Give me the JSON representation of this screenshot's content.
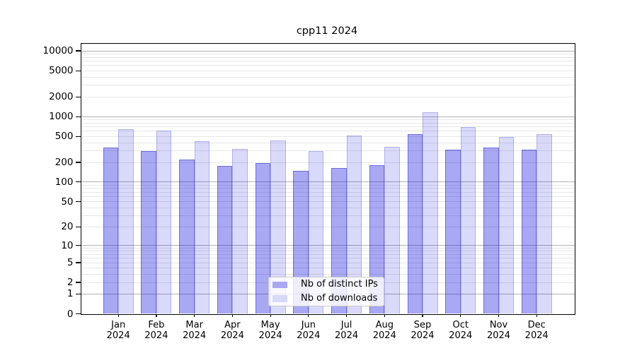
{
  "chart_data": {
    "type": "bar",
    "title": "cpp11 2024",
    "year_label": "2024",
    "months": [
      "Jan",
      "Feb",
      "Mar",
      "Apr",
      "May",
      "Jun",
      "Jul",
      "Aug",
      "Sep",
      "Oct",
      "Nov",
      "Dec"
    ],
    "series": [
      {
        "name": "Nb of distinct IPs",
        "fill": "rgba(0,0,220,0.34)",
        "edge": "rgba(40,40,190,0.45)",
        "swatch": "#a9a9f3",
        "values": [
          340,
          300,
          220,
          178,
          196,
          148,
          164,
          183,
          535,
          312,
          338,
          315
        ]
      },
      {
        "name": "Nb of downloads",
        "fill": "rgba(0,0,220,0.15)",
        "edge": "rgba(90,90,210,0.32)",
        "swatch": "#d9d9f9",
        "values": [
          650,
          610,
          425,
          320,
          430,
          295,
          520,
          345,
          1170,
          690,
          490,
          540
        ]
      }
    ],
    "y_axis": {
      "scale": "log1p",
      "ticks": [
        0,
        1,
        2,
        5,
        10,
        20,
        50,
        100,
        200,
        500,
        1000,
        2000,
        5000,
        10000
      ],
      "major_gridlines": [
        1,
        10,
        100,
        1000,
        10000
      ],
      "minor_multiples": [
        3,
        4,
        6,
        7,
        8,
        9
      ],
      "ylim": [
        0,
        13000
      ]
    },
    "grid": true,
    "legend_position": "lower center",
    "colors": {
      "grid_major": "#b2b2b2",
      "grid_minor": "#e7e7e7",
      "axis": "#000000"
    }
  }
}
